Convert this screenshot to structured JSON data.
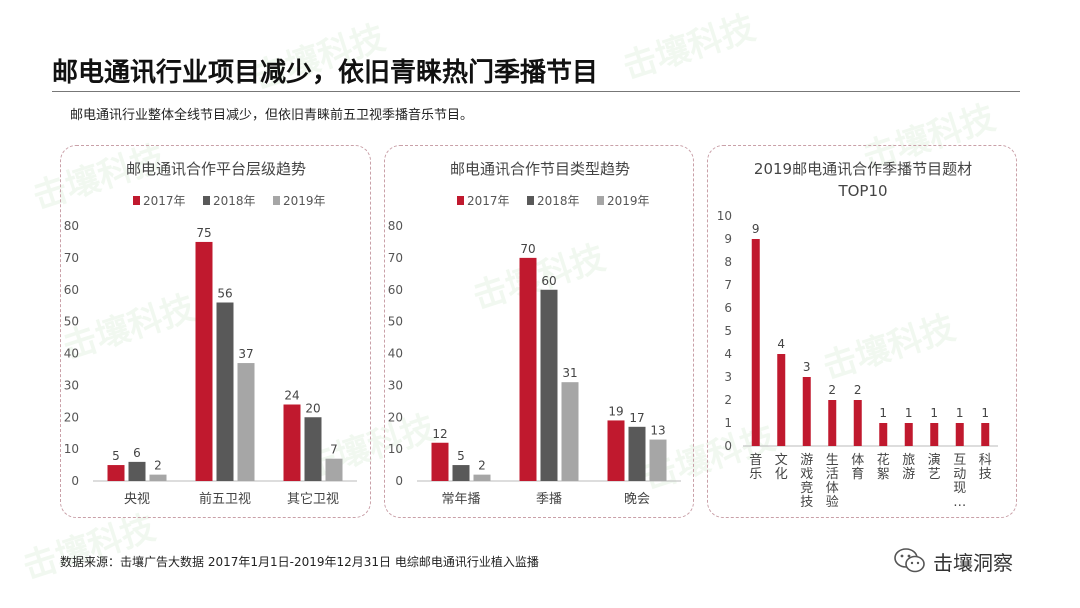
{
  "page": {
    "title": "邮电通讯行业项目减少，依旧青睐热门季播节目",
    "subtitle": "邮电通讯行业整体全线节目减少，但依旧青睐前五卫视季播音乐节目。",
    "footer": "数据来源：击壤广告大数据 2017年1月1日-2019年12月31日 电综邮电通讯行业植入监播",
    "brand": "击壤洞察",
    "watermark": "击壤科技",
    "colors": {
      "y2017": "#c0192e",
      "y2018": "#595959",
      "y2019": "#a6a6a6",
      "top10": "#c0192e"
    }
  },
  "chart_data": [
    {
      "type": "bar",
      "title": "邮电通讯合作平台层级趋势",
      "categories": [
        "央视",
        "前五卫视",
        "其它卫视"
      ],
      "series": [
        {
          "name": "2017年",
          "values": [
            5,
            75,
            24
          ]
        },
        {
          "name": "2018年",
          "values": [
            6,
            56,
            20
          ]
        },
        {
          "name": "2019年",
          "values": [
            2,
            37,
            7
          ]
        }
      ],
      "ylim": [
        0,
        80
      ],
      "yticks": [
        0,
        10,
        20,
        30,
        40,
        50,
        60,
        70,
        80
      ],
      "legend": "top",
      "grid": false
    },
    {
      "type": "bar",
      "title": "邮电通讯合作节目类型趋势",
      "categories": [
        "常年播",
        "季播",
        "晚会"
      ],
      "series": [
        {
          "name": "2017年",
          "values": [
            12,
            70,
            19
          ]
        },
        {
          "name": "2018年",
          "values": [
            5,
            60,
            17
          ]
        },
        {
          "name": "2019年",
          "values": [
            2,
            31,
            13
          ]
        }
      ],
      "ylim": [
        0,
        80
      ],
      "yticks": [
        0,
        10,
        20,
        30,
        40,
        50,
        60,
        70,
        80
      ],
      "legend": "top",
      "grid": false
    },
    {
      "type": "bar",
      "title": "2019邮电通讯合作季播节目题材",
      "title_line2": "TOP10",
      "categories": [
        "音乐",
        "文化",
        "游戏竞技",
        "生活体验",
        "体育",
        "花絮",
        "旅游",
        "演艺",
        "互动现…",
        "科技"
      ],
      "values": [
        9,
        4,
        3,
        2,
        2,
        1,
        1,
        1,
        1,
        1
      ],
      "ylim": [
        0,
        10
      ],
      "yticks": [
        0,
        1,
        2,
        3,
        4,
        5,
        6,
        7,
        8,
        9,
        10
      ],
      "grid": false
    }
  ]
}
